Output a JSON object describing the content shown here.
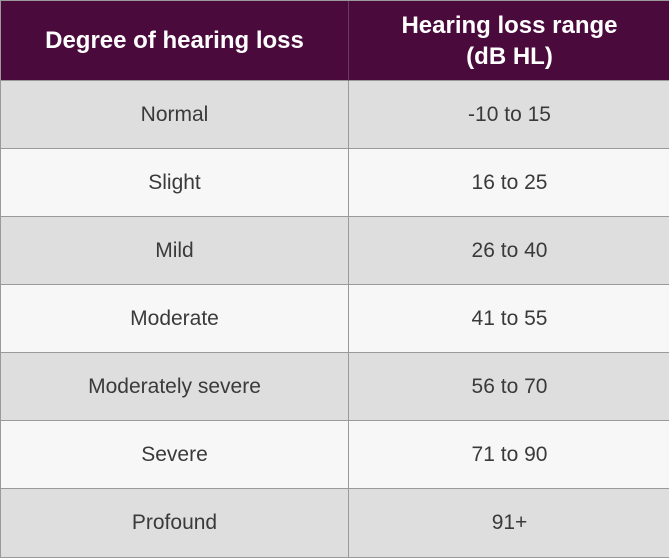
{
  "table": {
    "headers": {
      "degree": "Degree of hearing loss",
      "range_line1": "Hearing loss range",
      "range_line2": "(dB HL)"
    },
    "rows": [
      {
        "degree": "Normal",
        "range": "-10 to 15"
      },
      {
        "degree": "Slight",
        "range": "16 to 25"
      },
      {
        "degree": "Mild",
        "range": "26 to 40"
      },
      {
        "degree": "Moderate",
        "range": "41 to 55"
      },
      {
        "degree": "Moderately severe",
        "range": "56 to 70"
      },
      {
        "degree": "Severe",
        "range": "71 to 90"
      },
      {
        "degree": "Profound",
        "range": "91+"
      }
    ]
  },
  "colors": {
    "header_bg": "#4a0a3c",
    "header_text": "#ffffff",
    "row_shaded": "#dedede",
    "row_plain": "#f7f7f7",
    "border": "#9a9a9a"
  }
}
